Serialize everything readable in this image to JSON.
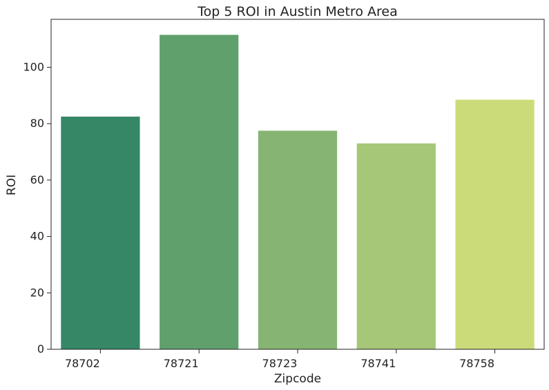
{
  "chart_data": {
    "type": "bar",
    "title": "Top 5 ROI in Austin Metro Area",
    "xlabel": "Zipcode",
    "ylabel": "ROI",
    "categories": [
      "78702",
      "78721",
      "78723",
      "78741",
      "78758"
    ],
    "values": [
      82.5,
      111.5,
      77.5,
      73.0,
      88.5
    ],
    "colors": [
      "#368765",
      "#60a06d",
      "#86b472",
      "#a6c777",
      "#cbdb79"
    ],
    "ylim": [
      0,
      117
    ],
    "yticks": [
      0,
      20,
      40,
      60,
      80,
      100
    ],
    "grid": false,
    "legend": "none"
  }
}
